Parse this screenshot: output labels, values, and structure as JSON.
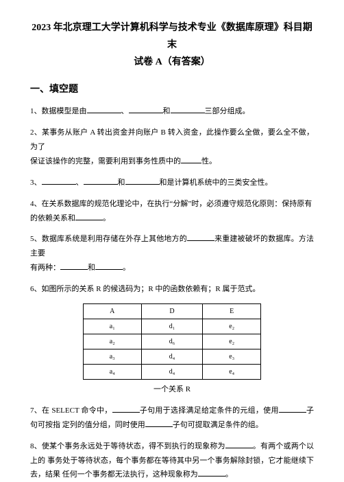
{
  "title_line1": "2023 年北京理工大学计算机科学与技术专业《数据库原理》科目期末",
  "title_line2": "试卷 A（有答案）",
  "section1_heading": "一、填空题",
  "q1": {
    "prefix": "1、数据模型是由",
    "mid1": "、",
    "mid2": "和",
    "suffix": "三部分组成。"
  },
  "q2": {
    "line1": "2、某事务从账户 A 转出资金并向账户 B 转入资金，此操作要么全做，要么全不做，为了",
    "line2a": "保证该操作的完整，需要利用到事务性质中的",
    "line2b": "性。"
  },
  "q3": {
    "prefix": "3、",
    "mid1": "、",
    "mid2": "和",
    "suffix": "和是计算机系统中的三类安全性。"
  },
  "q4": {
    "line1": "4、在关系数据库的规范化理论中，在执行“分解”时，必须遵守规范化原则：保持原有",
    "line2a": "的依赖关系和",
    "line2b": "。"
  },
  "q5": {
    "line1a": "5、数据库系统是利用存储在外存上其他地方的",
    "line1b": "来重建被破坏的数据库。方法主要",
    "line2a": "有两种：",
    "line2b": "和",
    "line2c": "。"
  },
  "q6": {
    "text": "6、如图所示的关系 R 的候选码为；R 中的函数依赖有；R 属于范式。"
  },
  "table": {
    "header": [
      "A",
      "D",
      "E"
    ],
    "rows": [
      [
        "a₁",
        "d₁",
        "e₂"
      ],
      [
        "a₂",
        "d₆",
        "e₂"
      ],
      [
        "a₃",
        "d₄",
        "e₃"
      ],
      [
        "a₄",
        "d₄",
        "e₄"
      ]
    ],
    "caption": "一个关系 R"
  },
  "q7": {
    "a": "7、在 SELECT 命令中，",
    "b": "子句用于选择满足给定条件的元组，使用",
    "c": "子句可按指",
    "d": "定列的值分组，同时使用",
    "e": "子句可提取满足条件的组。"
  },
  "q8": {
    "a": "8、使某个事务永远处于等待状态，得不到执行的现象称为",
    "b": "。有两个或两个以上的",
    "c": "事务处于等待状态，每个事务都在等待其中另一个事务解除封锁，它才能继续下去，结果",
    "d": "任何一个事务都无法执行，这种现象称为",
    "e": "。"
  }
}
